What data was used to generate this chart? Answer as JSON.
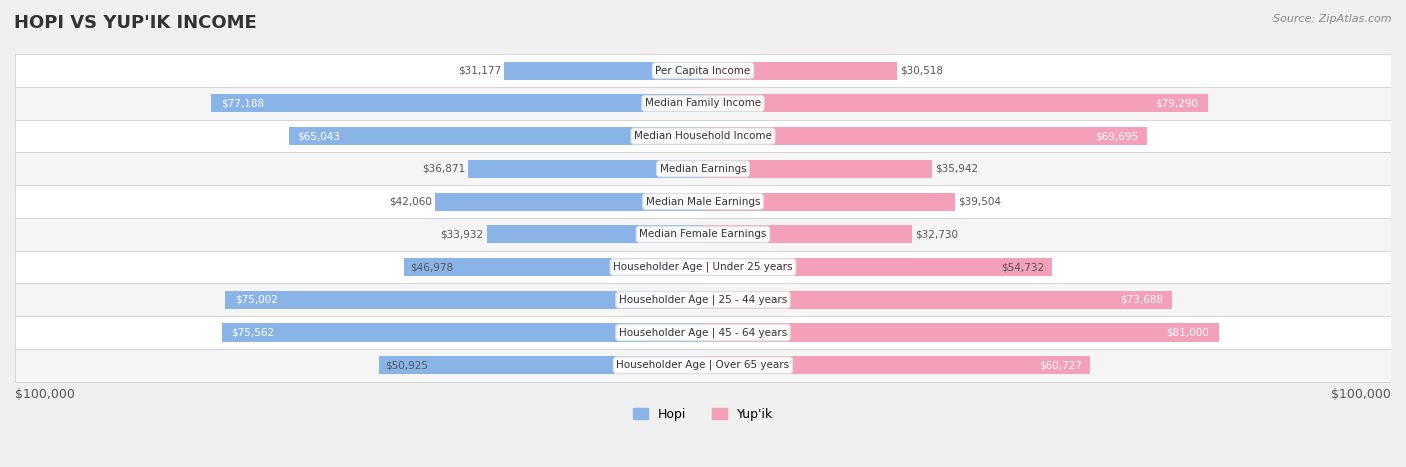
{
  "title": "HOPI VS YUP'IK INCOME",
  "source": "Source: ZipAtlas.com",
  "categories": [
    "Per Capita Income",
    "Median Family Income",
    "Median Household Income",
    "Median Earnings",
    "Median Male Earnings",
    "Median Female Earnings",
    "Householder Age | Under 25 years",
    "Householder Age | 25 - 44 years",
    "Householder Age | 45 - 64 years",
    "Householder Age | Over 65 years"
  ],
  "hopi_values": [
    31177,
    77188,
    65043,
    36871,
    42060,
    33932,
    46978,
    75002,
    75562,
    50925
  ],
  "yupik_values": [
    30518,
    79290,
    69695,
    35942,
    39504,
    32730,
    54732,
    73688,
    81000,
    60727
  ],
  "hopi_labels": [
    "$31,177",
    "$77,188",
    "$65,043",
    "$36,871",
    "$42,060",
    "$33,932",
    "$46,978",
    "$75,002",
    "$75,562",
    "$50,925"
  ],
  "yupik_labels": [
    "$30,518",
    "$79,290",
    "$69,695",
    "$35,942",
    "$39,504",
    "$32,730",
    "$54,732",
    "$73,688",
    "$81,000",
    "$60,727"
  ],
  "max_value": 100000,
  "hopi_color": "#8ab4e8",
  "hopi_color_dark": "#6699cc",
  "yupik_color": "#f4a0b8",
  "yupik_color_dark": "#e8607a",
  "hopi_label_colors": [
    "#555555",
    "#ffffff",
    "#ffffff",
    "#555555",
    "#555555",
    "#555555",
    "#555555",
    "#ffffff",
    "#ffffff",
    "#555555"
  ],
  "yupik_label_colors": [
    "#555555",
    "#ffffff",
    "#ffffff",
    "#555555",
    "#555555",
    "#555555",
    "#555555",
    "#ffffff",
    "#ffffff",
    "#ffffff"
  ],
  "bg_color": "#f0f0f0",
  "row_bg_color": "#ffffff",
  "row_bg_color_alt": "#f5f5f5",
  "bar_height": 0.55,
  "legend_hopi": "Hopi",
  "legend_yupik": "Yup'ik",
  "xlabel_left": "$100,000",
  "xlabel_right": "$100,000"
}
